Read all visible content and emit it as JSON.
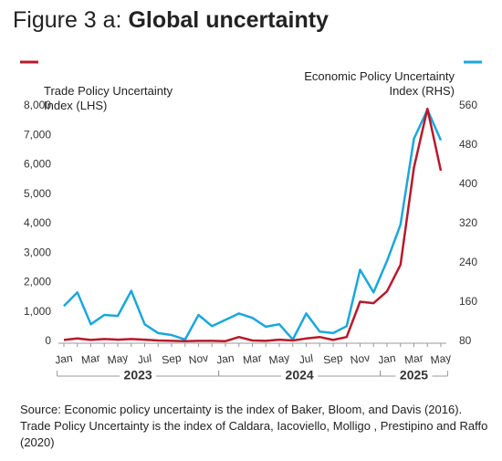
{
  "chart_data": {
    "type": "line",
    "figure_label": "Figure 3 a:",
    "title": "Global uncertainty",
    "categories": [
      "Jan",
      null,
      "Mar",
      null,
      "May",
      null,
      "Jul",
      null,
      "Sep",
      null,
      "Nov",
      null,
      "Jan",
      null,
      "Mar",
      null,
      "May",
      null,
      "Jul",
      null,
      "Sep",
      null,
      "Nov",
      null,
      "Jan",
      null,
      "Mar",
      null,
      "May"
    ],
    "years": [
      "2023",
      "2024",
      "2025"
    ],
    "series": [
      {
        "name": "Trade Policy Uncertainty\nIndex (LHS)",
        "color": "#b8192b",
        "axis": "y",
        "values": [
          50,
          100,
          50,
          80,
          60,
          80,
          60,
          30,
          20,
          10,
          20,
          20,
          10,
          150,
          30,
          20,
          60,
          30,
          100,
          150,
          50,
          150,
          1350,
          1300,
          1700,
          2600,
          5900,
          7900,
          5800
        ]
      },
      {
        "name": "Economic Policy Uncertainty\nIndex (RHS)",
        "color": "#1aa7dc",
        "axis": "y2",
        "values": [
          152,
          180,
          115,
          134,
          132,
          183,
          115,
          97,
          93,
          84,
          134,
          111,
          124,
          137,
          128,
          110,
          115,
          84,
          137,
          100,
          97,
          111,
          226,
          180,
          244,
          318,
          493,
          552,
          490
        ]
      }
    ],
    "ylim": [
      0,
      8000
    ],
    "yticks": [
      0,
      {
        "value": 1000,
        "label": "1,000"
      },
      {
        "value": 2000,
        "label": "2,000"
      },
      {
        "value": 3000,
        "label": "3,000"
      },
      {
        "value": 4000,
        "label": "4,000"
      },
      {
        "value": 5000,
        "label": "5,000"
      },
      {
        "value": 6000,
        "label": "6,000"
      },
      {
        "value": 7000,
        "label": "7,000"
      },
      {
        "value": 8000,
        "label": "8,000"
      }
    ],
    "y2lim": [
      80,
      560
    ],
    "y2ticks": [
      80,
      160,
      240,
      320,
      400,
      480,
      560
    ],
    "grid": false,
    "source": "Source: Economic policy uncertainty is the index of Baker, Bloom, and Davis (2016). Trade Policy Uncertainty is the index of Caldara, Iacoviello, Molligo , Prestipino and Raffo (2020)"
  }
}
